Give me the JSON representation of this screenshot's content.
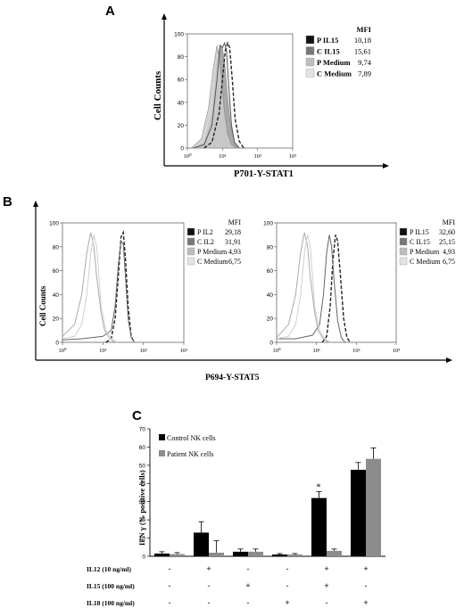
{
  "panels": {
    "a": {
      "letter": "A",
      "ylabel": "Cell Counts",
      "xlabel": "P701-Y-STAT1",
      "y_ticks": [
        "100",
        "80",
        "60",
        "40",
        "20",
        "0"
      ],
      "x_ticks": [
        "10⁰",
        "10¹",
        "10²",
        "10³"
      ],
      "legend_header": "MFI",
      "legend": [
        {
          "label": "P IL15",
          "value": "10,18",
          "swatch": "#111111"
        },
        {
          "label": "C IL15",
          "value": "15,61",
          "swatch": "#777777"
        },
        {
          "label": "P Medium",
          "value": "9,74",
          "swatch": "#bdbdbd"
        },
        {
          "label": "C Medium",
          "value": "7,89",
          "swatch": "#e3e3e3"
        }
      ]
    },
    "b": {
      "letter": "B",
      "ylabel": "Cell Counts",
      "xlabel": "P694-Y-STAT5",
      "y_ticks": [
        "100",
        "80",
        "60",
        "40",
        "20",
        "0"
      ],
      "x_ticks": [
        "10⁰",
        "10¹",
        "10²",
        "10³"
      ],
      "left": {
        "legend_header": "MFI",
        "legend": [
          {
            "label": "P IL2",
            "value": "29,18",
            "swatch": "#111111"
          },
          {
            "label": "C IL2",
            "value": "31,91",
            "swatch": "#777777"
          },
          {
            "label": "P Medium",
            "value": "4,93",
            "swatch": "#bdbdbd"
          },
          {
            "label": "C Medium",
            "value": "6,75",
            "swatch": "#e3e3e3"
          }
        ]
      },
      "right": {
        "legend_header": "MFI",
        "legend": [
          {
            "label": "P IL15",
            "value": "32,60",
            "swatch": "#111111"
          },
          {
            "label": "C IL15",
            "value": "25,15",
            "swatch": "#777777"
          },
          {
            "label": "P Medium",
            "value": "4,93",
            "swatch": "#bdbdbd"
          },
          {
            "label": "C Medium",
            "value": "6,75",
            "swatch": "#e3e3e3"
          }
        ]
      }
    },
    "c": {
      "letter": "C",
      "ylabel": "IFN γ (% positive cells)",
      "significance_mark": "*",
      "rows": [
        {
          "label": "IL12 (10 ng/ml)",
          "marks": [
            "-",
            "+",
            "-",
            "-",
            "+",
            "+"
          ]
        },
        {
          "label": "IL15 (100 ng/ml)",
          "marks": [
            "-",
            "-",
            "+",
            "-",
            "+",
            "-"
          ]
        },
        {
          "label": "IL18 (100 ng/ml)",
          "marks": [
            "-",
            "-",
            "-",
            "+",
            "-",
            "+"
          ]
        }
      ]
    }
  },
  "chart_data": [
    {
      "type": "area",
      "panel": "A",
      "xlabel": "P701-Y-STAT1",
      "ylabel": "Cell Counts",
      "x_scale": "log",
      "xlim": [
        1,
        1000
      ],
      "ylim": [
        0,
        100
      ],
      "series": [
        {
          "name": "P IL15",
          "color": "#555555",
          "style": "solid",
          "x": [
            1.5,
            3,
            5,
            7,
            8.5,
            10,
            11.5,
            13,
            15,
            18,
            22,
            30
          ],
          "y": [
            0,
            3,
            20,
            60,
            90,
            88,
            92,
            85,
            55,
            20,
            5,
            0
          ]
        },
        {
          "name": "C IL15",
          "color": "#222222",
          "style": "dashed",
          "x": [
            3,
            5,
            8,
            10,
            12,
            14,
            16,
            19,
            23,
            30,
            40
          ],
          "y": [
            0,
            5,
            30,
            60,
            85,
            92,
            88,
            60,
            25,
            6,
            0
          ]
        },
        {
          "name": "P Medium",
          "color": "#999999",
          "style": "filled",
          "x": [
            1.5,
            3,
            5,
            7,
            8.5,
            10,
            12,
            14,
            17,
            22,
            28
          ],
          "y": [
            0,
            5,
            30,
            75,
            90,
            88,
            70,
            45,
            20,
            5,
            0
          ]
        },
        {
          "name": "C Medium",
          "color": "#cccccc",
          "style": "filled",
          "x": [
            1.3,
            2.5,
            4,
            5.5,
            7,
            8,
            9.5,
            11,
            14,
            18,
            24
          ],
          "y": [
            0,
            8,
            35,
            70,
            90,
            80,
            60,
            35,
            12,
            3,
            0
          ]
        }
      ]
    },
    {
      "type": "line",
      "panel": "B-left",
      "xlabel": "P694-Y-STAT5",
      "ylabel": "Cell Counts",
      "x_scale": "log",
      "xlim": [
        1,
        1000
      ],
      "ylim": [
        0,
        100
      ],
      "series": [
        {
          "name": "P IL2",
          "color": "#222222",
          "style": "dashed",
          "x": [
            12,
            16,
            20,
            24,
            28,
            32,
            36,
            42,
            50,
            60
          ],
          "y": [
            0,
            3,
            20,
            55,
            88,
            92,
            70,
            30,
            5,
            0
          ]
        },
        {
          "name": "C IL2",
          "color": "#666666",
          "style": "solid",
          "x": [
            1,
            3,
            10,
            16,
            20,
            24,
            28,
            32,
            36,
            42,
            50,
            60
          ],
          "y": [
            2,
            3,
            5,
            10,
            30,
            65,
            85,
            82,
            55,
            20,
            4,
            0
          ]
        },
        {
          "name": "P Medium",
          "color": "#aaaaaa",
          "style": "solid",
          "x": [
            1,
            2,
            3,
            4,
            5,
            6,
            7,
            9,
            11,
            14,
            18,
            25
          ],
          "y": [
            5,
            15,
            40,
            75,
            92,
            80,
            55,
            25,
            10,
            4,
            1,
            0
          ]
        },
        {
          "name": "C Medium",
          "color": "#d0d0d0",
          "style": "solid",
          "x": [
            1,
            2,
            3,
            4,
            5,
            6,
            7,
            8,
            9,
            12,
            16,
            22
          ],
          "y": [
            3,
            5,
            15,
            40,
            75,
            90,
            80,
            55,
            30,
            10,
            3,
            0
          ]
        }
      ]
    },
    {
      "type": "line",
      "panel": "B-right",
      "xlabel": "P694-Y-STAT5",
      "ylabel": "Cell Counts",
      "x_scale": "log",
      "xlim": [
        1,
        1000
      ],
      "ylim": [
        0,
        100
      ],
      "series": [
        {
          "name": "P IL15",
          "color": "#222222",
          "style": "dashed",
          "x": [
            14,
            18,
            22,
            26,
            30,
            34,
            40,
            48,
            58,
            70
          ],
          "y": [
            0,
            5,
            30,
            70,
            90,
            85,
            55,
            20,
            4,
            0
          ]
        },
        {
          "name": "C IL15",
          "color": "#666666",
          "style": "solid",
          "x": [
            1,
            3,
            8,
            12,
            15,
            18,
            21,
            24,
            28,
            34,
            42,
            52
          ],
          "y": [
            3,
            3,
            6,
            15,
            40,
            75,
            90,
            80,
            50,
            18,
            4,
            0
          ]
        },
        {
          "name": "P Medium",
          "color": "#aaaaaa",
          "style": "solid",
          "x": [
            1,
            2,
            3,
            4,
            5,
            6,
            7,
            9,
            11,
            14,
            18,
            25
          ],
          "y": [
            4,
            15,
            40,
            75,
            92,
            80,
            55,
            25,
            10,
            4,
            1,
            0
          ]
        },
        {
          "name": "C Medium",
          "color": "#d0d0d0",
          "style": "solid",
          "x": [
            1,
            2,
            3,
            4,
            5,
            6,
            7,
            8,
            9,
            12,
            16,
            22
          ],
          "y": [
            3,
            5,
            15,
            40,
            75,
            90,
            80,
            55,
            30,
            10,
            3,
            0
          ]
        }
      ]
    },
    {
      "type": "bar",
      "panel": "C",
      "ylabel": "IFN γ (% positive cells)",
      "ylim": [
        0,
        70
      ],
      "y_ticks": [
        0,
        10,
        20,
        30,
        40,
        50,
        60,
        70
      ],
      "categories": [
        "-/-/-",
        "+/-/-",
        "-/+/-",
        "-/-/+",
        "+/+/-",
        "+/-/+"
      ],
      "series": [
        {
          "name": "Control NK cells",
          "color": "#000000",
          "values": [
            1.5,
            13,
            2.5,
            1,
            32,
            47.5
          ],
          "errors": [
            1,
            6,
            1.5,
            0.5,
            3.5,
            4
          ]
        },
        {
          "name": "Patient NK cells",
          "color": "#8c8c8c",
          "values": [
            1.2,
            2,
            2.5,
            1,
            3,
            53.5
          ],
          "errors": [
            0.8,
            6.5,
            1.5,
            0.5,
            1,
            6
          ]
        }
      ]
    }
  ]
}
